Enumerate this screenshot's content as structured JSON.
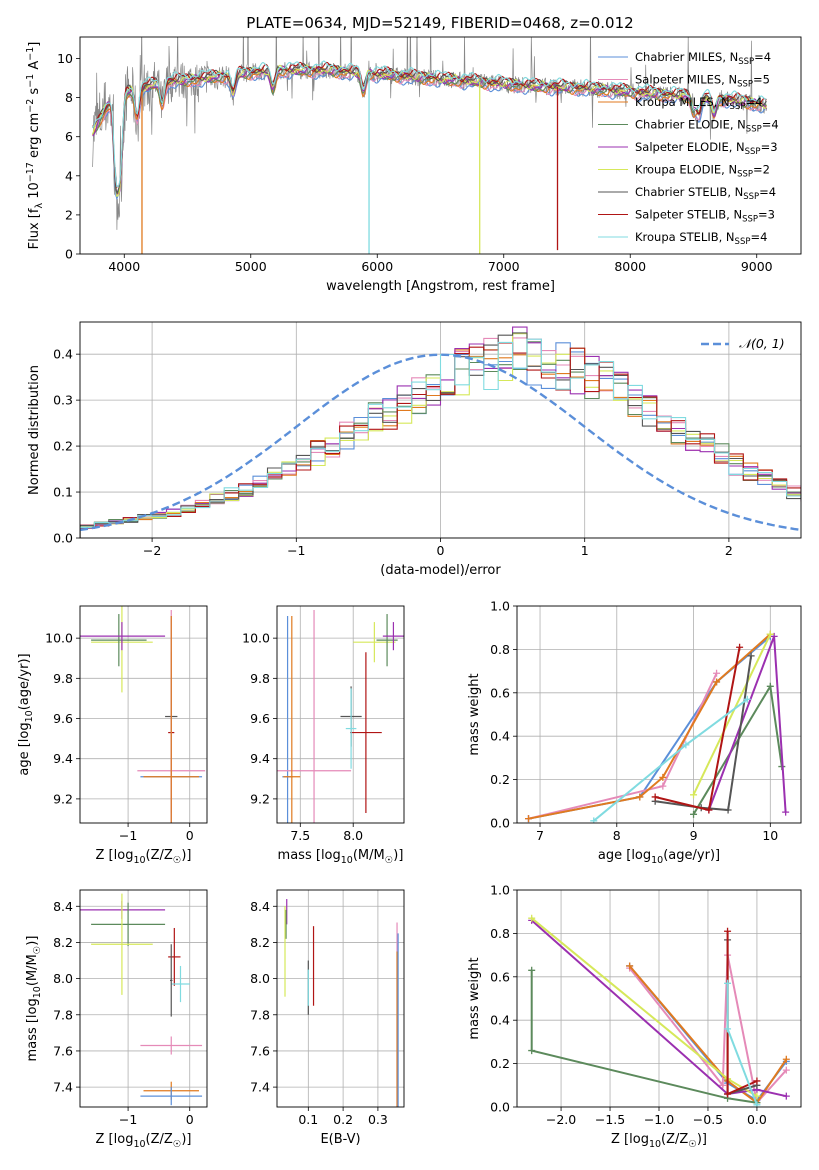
{
  "figure_title": "PLATE=0634, MJD=52149, FIBERID=0468, z=0.012",
  "colors": {
    "Chabrier MILES": "#5b8fd9",
    "Salpeter MILES": "#e58ab8",
    "Kroupa MILES": "#e07a1f",
    "Chabrier ELODIE": "#5c8a5c",
    "Salpeter ELODIE": "#9b30b0",
    "Kroupa ELODIE": "#d6e85a",
    "Chabrier STELIB": "#555555",
    "Salpeter STELIB": "#b01515",
    "Kroupa STELIB": "#80dbe0",
    "data": "#888888",
    "normal": "#5b8fd9"
  },
  "legend_spectrum": [
    {
      "name": "Chabrier MILES",
      "nssp": "4"
    },
    {
      "name": "Salpeter MILES",
      "nssp": "5"
    },
    {
      "name": "Kroupa MILES",
      "nssp": "4"
    },
    {
      "name": "Chabrier ELODIE",
      "nssp": "4"
    },
    {
      "name": "Salpeter ELODIE",
      "nssp": "3"
    },
    {
      "name": "Kroupa ELODIE",
      "nssp": "2"
    },
    {
      "name": "Chabrier STELIB",
      "nssp": "4"
    },
    {
      "name": "Salpeter STELIB",
      "nssp": "3"
    },
    {
      "name": "Kroupa STELIB",
      "nssp": "4"
    }
  ],
  "nssp_label": "N",
  "nssp_sub": "SSP",
  "chart_data": [
    {
      "id": "spectrum",
      "type": "line",
      "xlabel": "wavelength [Angstrom, rest frame]",
      "ylabel": "Flux [f_λ 10^-17 erg cm^-2 s^-1 A^-1]",
      "xlim": [
        3650,
        9350
      ],
      "ylim": [
        0,
        11.1
      ],
      "xticks": [
        4000,
        5000,
        6000,
        7000,
        8000,
        9000
      ],
      "yticks": [
        0,
        2,
        4,
        6,
        8,
        10
      ],
      "data_range": [
        3750,
        9080
      ],
      "continuum": [
        [
          3750,
          6.2
        ],
        [
          3850,
          7.4
        ],
        [
          3950,
          8.2
        ],
        [
          4100,
          8.4
        ],
        [
          4300,
          8.8
        ],
        [
          4500,
          8.9
        ],
        [
          4800,
          9.1
        ],
        [
          5000,
          9.3
        ],
        [
          5300,
          9.4
        ],
        [
          5600,
          9.4
        ],
        [
          6000,
          9.2
        ],
        [
          6400,
          9.0
        ],
        [
          6800,
          8.8
        ],
        [
          7200,
          8.6
        ],
        [
          7600,
          8.5
        ],
        [
          8000,
          8.3
        ],
        [
          8400,
          8.1
        ],
        [
          8800,
          7.9
        ],
        [
          9080,
          7.6
        ]
      ],
      "absorption_features": [
        [
          3934,
          4.6
        ],
        [
          3969,
          4.4
        ],
        [
          4102,
          1.5
        ],
        [
          4300,
          1.2
        ],
        [
          4861,
          1.0
        ],
        [
          5175,
          1.0
        ],
        [
          5890,
          1.0
        ],
        [
          8500,
          0.8
        ],
        [
          8544,
          0.9
        ],
        [
          8662,
          0.9
        ]
      ],
      "model_drops": [
        {
          "model": "Kroupa MILES",
          "x": 4140,
          "to": 0
        },
        {
          "model": "Kroupa STELIB",
          "x": 5935,
          "to": 0
        },
        {
          "model": "Kroupa ELODIE",
          "x": 6810,
          "to": 0
        },
        {
          "model": "Salpeter STELIB",
          "x": 7425,
          "to": 0.2
        }
      ],
      "legend": "upper-right"
    },
    {
      "id": "residuals",
      "type": "histogram",
      "xlabel": "(data-model)/error",
      "ylabel": "Normed distribution",
      "xlim": [
        -2.5,
        2.5
      ],
      "ylim": [
        0,
        0.47
      ],
      "xticks": [
        -2,
        -1,
        0,
        1,
        2
      ],
      "yticks": [
        0.0,
        0.1,
        0.2,
        0.3,
        0.4
      ],
      "bin_width": 0.1,
      "bin_start": -2.5,
      "envelope": [
        0.025,
        0.03,
        0.035,
        0.04,
        0.045,
        0.05,
        0.055,
        0.065,
        0.075,
        0.085,
        0.095,
        0.105,
        0.12,
        0.135,
        0.15,
        0.17,
        0.185,
        0.2,
        0.22,
        0.24,
        0.26,
        0.275,
        0.29,
        0.31,
        0.33,
        0.35,
        0.36,
        0.37,
        0.38,
        0.39,
        0.4,
        0.39,
        0.38,
        0.37,
        0.36,
        0.35,
        0.34,
        0.32,
        0.3,
        0.28,
        0.26,
        0.24,
        0.22,
        0.2,
        0.18,
        0.16,
        0.145,
        0.13,
        0.115,
        0.1,
        0.09,
        0.08,
        0.07,
        0.06,
        0.055,
        0.05,
        0.045,
        0.04,
        0.035,
        0.03
      ],
      "normal_label": "𝒩(0, 1)",
      "legend": "upper-right"
    },
    {
      "id": "age_vs_Z",
      "type": "errorbar",
      "xlabel": "Z [log10(Z/Z☉)]",
      "ylabel": "age  [log10(age/yr)]",
      "xlim": [
        -1.78,
        0.28
      ],
      "ylim": [
        9.08,
        10.16
      ],
      "xticks": [
        -1,
        0
      ],
      "yticks": [
        9.2,
        9.4,
        9.6,
        9.8,
        10.0
      ],
      "points": [
        {
          "model": "Kroupa ELODIE",
          "x": -1.1,
          "xerr": 0.5,
          "y": 9.98,
          "yerr": 0.25
        },
        {
          "model": "Chabrier ELODIE",
          "x": -1.15,
          "xerr": 0.45,
          "y": 9.99,
          "yerr": 0.13
        },
        {
          "model": "Salpeter ELODIE",
          "x": -1.1,
          "xerr": 0.7,
          "y": 10.01,
          "yerr": 0.07
        },
        {
          "model": "Salpeter STELIB",
          "x": -0.3,
          "xerr": 0.05,
          "y": 9.53,
          "yerr": 0.4
        },
        {
          "model": "Chabrier STELIB",
          "x": -0.3,
          "xerr": 0.1,
          "y": 9.61,
          "yerr": 0.2
        },
        {
          "model": "Chabrier MILES",
          "x": -0.3,
          "xerr": 0.5,
          "y": 9.31,
          "yerr": 0.8
        },
        {
          "model": "Salpeter MILES",
          "x": -0.3,
          "xerr": 0.55,
          "y": 9.34,
          "yerr": 0.8
        },
        {
          "model": "Kroupa MILES",
          "x": -0.3,
          "xerr": 0.45,
          "y": 9.31,
          "yerr": 0.8
        }
      ]
    },
    {
      "id": "age_vs_mass",
      "type": "errorbar",
      "xlabel": "mass [log10(M/M☉)]",
      "ylabel": "",
      "xlim": [
        7.28,
        8.48
      ],
      "ylim": [
        9.08,
        10.16
      ],
      "xticks": [
        7.5,
        8.0
      ],
      "yticks": [
        9.2,
        9.4,
        9.6,
        9.8,
        10.0
      ],
      "points": [
        {
          "model": "Kroupa ELODIE",
          "x": 8.2,
          "xerr": 0.2,
          "y": 9.98,
          "yerr": 0.1
        },
        {
          "model": "Chabrier ELODIE",
          "x": 8.32,
          "xerr": 0.1,
          "y": 9.99,
          "yerr": 0.13
        },
        {
          "model": "Salpeter ELODIE",
          "x": 8.38,
          "xerr": 0.1,
          "y": 10.01,
          "yerr": 0.07
        },
        {
          "model": "Salpeter STELIB",
          "x": 8.12,
          "xerr": 0.15,
          "y": 9.53,
          "yerr": 0.4
        },
        {
          "model": "Chabrier STELIB",
          "x": 7.98,
          "xerr": 0.1,
          "y": 9.61,
          "yerr": 0.15
        },
        {
          "model": "Kroupa STELIB",
          "x": 7.98,
          "xerr": 0.05,
          "y": 9.55,
          "yerr": 0.2
        },
        {
          "model": "Chabrier MILES",
          "x": 7.38,
          "xerr": 0.05,
          "y": 9.31,
          "yerr": 0.8
        },
        {
          "model": "Salpeter MILES",
          "x": 7.63,
          "xerr": 0.35,
          "y": 9.34,
          "yerr": 0.8
        },
        {
          "model": "Kroupa MILES",
          "x": 7.42,
          "xerr": 0.08,
          "y": 9.31,
          "yerr": 0.8
        }
      ]
    },
    {
      "id": "weight_vs_age",
      "type": "line",
      "xlabel": "age  [log10(age/yr)]",
      "ylabel": "mass weight",
      "xlim": [
        6.7,
        10.4
      ],
      "ylim": [
        0,
        1.0
      ],
      "xticks": [
        7,
        8,
        9,
        10
      ],
      "yticks": [
        0.0,
        0.2,
        0.4,
        0.6,
        0.8,
        1.0
      ],
      "series": [
        {
          "model": "Chabrier MILES",
          "x": [
            6.85,
            8.3,
            9.3,
            10.0
          ],
          "y": [
            0.02,
            0.12,
            0.65,
            0.86
          ]
        },
        {
          "model": "Salpeter MILES",
          "x": [
            6.85,
            8.6,
            9.3
          ],
          "y": [
            0.02,
            0.17,
            0.69
          ]
        },
        {
          "model": "Kroupa MILES",
          "x": [
            6.85,
            8.3,
            8.6,
            9.3,
            10.0
          ],
          "y": [
            0.02,
            0.12,
            0.21,
            0.65,
            0.87
          ]
        },
        {
          "model": "Chabrier ELODIE",
          "x": [
            9.0,
            10.0,
            10.15
          ],
          "y": [
            0.04,
            0.63,
            0.26
          ]
        },
        {
          "model": "Salpeter ELODIE",
          "x": [
            9.2,
            10.05,
            10.2
          ],
          "y": [
            0.06,
            0.86,
            0.05
          ]
        },
        {
          "model": "Kroupa ELODIE",
          "x": [
            9.0,
            10.0
          ],
          "y": [
            0.13,
            0.87
          ]
        },
        {
          "model": "Chabrier STELIB",
          "x": [
            8.5,
            9.1,
            9.45,
            9.75
          ],
          "y": [
            0.1,
            0.07,
            0.06,
            0.77
          ]
        },
        {
          "model": "Salpeter STELIB",
          "x": [
            8.5,
            9.2,
            9.6
          ],
          "y": [
            0.12,
            0.06,
            0.81
          ]
        },
        {
          "model": "Kroupa STELIB",
          "x": [
            7.7,
            8.9,
            9.7
          ],
          "y": [
            0.01,
            0.36,
            0.57
          ]
        }
      ]
    },
    {
      "id": "mass_vs_Z",
      "type": "errorbar",
      "xlabel": "Z [log10(Z/Z☉)]",
      "ylabel": "mass [log10(M/M☉)]",
      "xlim": [
        -1.78,
        0.28
      ],
      "ylim": [
        7.29,
        8.49
      ],
      "xticks": [
        -1,
        0
      ],
      "yticks": [
        7.4,
        7.6,
        7.8,
        8.0,
        8.2,
        8.4
      ],
      "points": [
        {
          "model": "Salpeter ELODIE",
          "x": -1.1,
          "xerr": 0.7,
          "y": 8.38,
          "yerr": 0.05
        },
        {
          "model": "Chabrier ELODIE",
          "x": -1.0,
          "xerr": 0.6,
          "y": 8.3,
          "yerr": 0.12
        },
        {
          "model": "Kroupa ELODIE",
          "x": -1.1,
          "xerr": 0.5,
          "y": 8.19,
          "yerr": 0.28
        },
        {
          "model": "Salpeter STELIB",
          "x": -0.25,
          "xerr": 0.1,
          "y": 8.12,
          "yerr": 0.16
        },
        {
          "model": "Kroupa STELIB",
          "x": -0.15,
          "xerr": 0.15,
          "y": 7.97,
          "yerr": 0.1
        },
        {
          "model": "Chabrier STELIB",
          "x": -0.3,
          "xerr": 0.02,
          "y": 7.99,
          "yerr": 0.2
        },
        {
          "model": "Salpeter MILES",
          "x": -0.3,
          "xerr": 0.5,
          "y": 7.63,
          "yerr": 0.05
        },
        {
          "model": "Kroupa MILES",
          "x": -0.3,
          "xerr": 0.45,
          "y": 7.38,
          "yerr": 0.05
        },
        {
          "model": "Chabrier MILES",
          "x": -0.3,
          "xerr": 0.5,
          "y": 7.35,
          "yerr": 0.05
        }
      ]
    },
    {
      "id": "mass_vs_ebv",
      "type": "errorbar",
      "xlabel": "E(B-V)",
      "ylabel": "",
      "xlim": [
        0.01,
        0.375
      ],
      "ylim": [
        7.29,
        8.49
      ],
      "xticks": [
        0.1,
        0.2,
        0.3
      ],
      "yticks": [
        7.4,
        7.6,
        7.8,
        8.0,
        8.2,
        8.4
      ],
      "points": [
        {
          "model": "Salpeter ELODIE",
          "x": 0.038,
          "xerr": 0,
          "y": 8.37,
          "yerr": 0.07
        },
        {
          "model": "Chabrier ELODIE",
          "x": 0.036,
          "xerr": 0,
          "y": 8.3,
          "yerr": 0.08
        },
        {
          "model": "Kroupa ELODIE",
          "x": 0.033,
          "xerr": 0,
          "y": 8.15,
          "yerr": 0.25
        },
        {
          "model": "Salpeter STELIB",
          "x": 0.115,
          "xerr": 0,
          "y": 8.07,
          "yerr": 0.22
        },
        {
          "model": "Chabrier STELIB",
          "x": 0.1,
          "xerr": 0,
          "y": 7.95,
          "yerr": 0.15
        },
        {
          "model": "Kroupa STELIB",
          "x": 0.1,
          "xerr": 0,
          "y": 7.95,
          "yerr": 0.1
        },
        {
          "model": "Salpeter MILES",
          "x": 0.355,
          "xerr": 0,
          "y": 7.76,
          "yerr": 0.55
        },
        {
          "model": "Kroupa MILES",
          "x": 0.355,
          "xerr": 0,
          "y": 7.6,
          "yerr": 0.55
        },
        {
          "model": "Chabrier MILES",
          "x": 0.358,
          "xerr": 0,
          "y": 7.65,
          "yerr": 0.6
        }
      ]
    },
    {
      "id": "weight_vs_Z",
      "type": "line",
      "xlabel": "Z [log10(Z/Z☉)]",
      "ylabel": "mass weight",
      "xlim": [
        -2.45,
        0.45
      ],
      "ylim": [
        0,
        1.0
      ],
      "xticks": [
        -2.0,
        -1.5,
        -1.0,
        -0.5,
        0.0
      ],
      "yticks": [
        0.0,
        0.2,
        0.4,
        0.6,
        0.8,
        1.0
      ],
      "series": [
        {
          "model": "Chabrier MILES",
          "x": [
            -1.3,
            -0.3,
            0.0,
            0.3
          ],
          "y": [
            0.65,
            0.11,
            0.03,
            0.21
          ]
        },
        {
          "model": "Salpeter MILES",
          "x": [
            -1.3,
            -0.35,
            -0.3,
            0.0,
            0.3
          ],
          "y": [
            0.64,
            0.1,
            0.7,
            0.02,
            0.17
          ]
        },
        {
          "model": "Kroupa MILES",
          "x": [
            -1.3,
            -0.3,
            0.0,
            0.3
          ],
          "y": [
            0.65,
            0.12,
            0.02,
            0.22
          ]
        },
        {
          "model": "Chabrier ELODIE",
          "x": [
            -2.3,
            -2.3,
            -0.3,
            0.0
          ],
          "y": [
            0.63,
            0.26,
            0.04,
            0.02
          ]
        },
        {
          "model": "Salpeter ELODIE",
          "x": [
            -2.3,
            -0.3,
            0.0,
            0.3
          ],
          "y": [
            0.86,
            0.06,
            0.08,
            0.05
          ]
        },
        {
          "model": "Kroupa ELODIE",
          "x": [
            -2.3,
            -0.3,
            0.0
          ],
          "y": [
            0.87,
            0.13,
            0.05
          ]
        },
        {
          "model": "Chabrier STELIB",
          "x": [
            -0.3,
            -0.3,
            0.0
          ],
          "y": [
            0.77,
            0.06,
            0.1
          ]
        },
        {
          "model": "Salpeter STELIB",
          "x": [
            -0.3,
            -0.3,
            0.0
          ],
          "y": [
            0.81,
            0.06,
            0.12
          ]
        },
        {
          "model": "Kroupa STELIB",
          "x": [
            -0.3,
            -0.3,
            0.0
          ],
          "y": [
            0.57,
            0.36,
            0.01
          ]
        }
      ]
    }
  ]
}
